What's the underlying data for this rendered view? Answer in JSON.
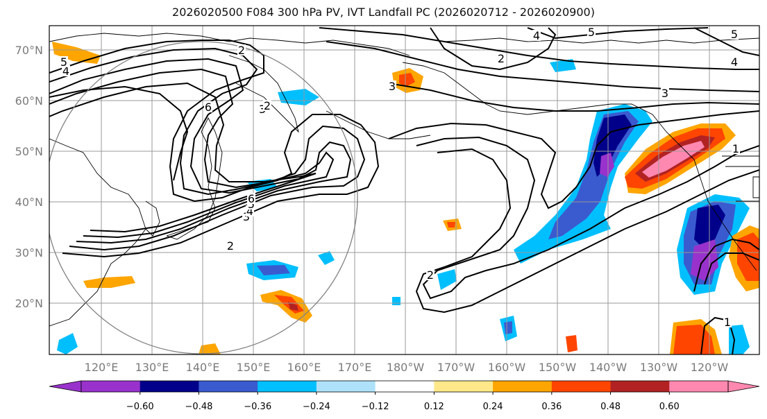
{
  "title": "2026020500 F084 300 hPa PV, IVT Landfall PC (2026020712 - 2026020900)",
  "map": {
    "lat_labels": [
      "70°N",
      "60°N",
      "50°N",
      "40°N",
      "30°N",
      "20°N"
    ],
    "lon_labels": [
      "120°E",
      "130°E",
      "140°E",
      "150°E",
      "160°E",
      "170°E",
      "180°W",
      "170°W",
      "160°W",
      "150°W",
      "140°W",
      "130°W",
      "120°W"
    ],
    "contour_labels": [
      "2",
      "3",
      "4",
      "5",
      "6",
      "2",
      "3",
      "4",
      "5",
      "6",
      "1",
      "2",
      "3",
      "4",
      "5",
      "3",
      "4",
      "5",
      "2",
      "1",
      "2"
    ]
  },
  "colorbar": {
    "tick_labels": [
      "−0.60",
      "−0.48",
      "−0.36",
      "−0.24",
      "−0.12",
      "0.12",
      "0.24",
      "0.36",
      "0.48",
      "0.60"
    ],
    "colors": [
      "#9932cc",
      "#00008b",
      "#3a5bcf",
      "#00bfff",
      "#aee2fa",
      "#ffffff",
      "#ffe88a",
      "#ffa500",
      "#ff4500",
      "#b22222",
      "#ff88b0",
      "#ff88b0"
    ]
  },
  "colors": {
    "coast": "#000000",
    "grid": "#9a9a9a",
    "contour": "#000000",
    "circle": "#808080"
  }
}
